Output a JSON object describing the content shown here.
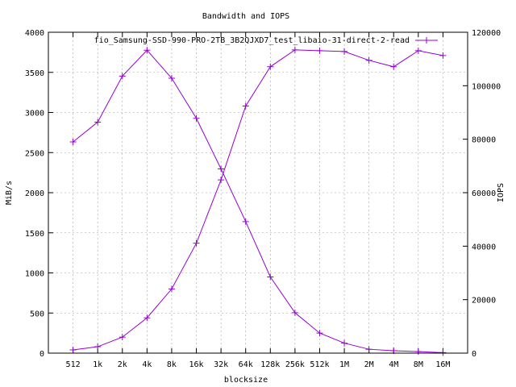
{
  "chart_data": {
    "type": "line",
    "title": "Bandwidth and IOPS",
    "xlabel": "blocksize",
    "ylabel": "MiB/s",
    "y2label": "IOPS",
    "categories": [
      "512",
      "1k",
      "2k",
      "4k",
      "8k",
      "16k",
      "32k",
      "64k",
      "128k",
      "256k",
      "512k",
      "1M",
      "2M",
      "4M",
      "8M",
      "16M"
    ],
    "ylim": [
      0,
      4000
    ],
    "y2lim": [
      0,
      120000
    ],
    "yticks": [
      "0",
      "500",
      "1000",
      "1500",
      "2000",
      "2500",
      "3000",
      "3500",
      "4000"
    ],
    "y2ticks": [
      "0",
      "20000",
      "40000",
      "60000",
      "80000",
      "100000",
      "120000"
    ],
    "grid": true,
    "legend_position": "top-right",
    "color": "#9400d3",
    "series": [
      {
        "name": "fio_Samsung-SSD-990-PRO-2TB_3B2QJXD7_test_libaio-31-direct-2-read",
        "axis": "left",
        "values": [
          40,
          80,
          200,
          440,
          800,
          1370,
          2160,
          3080,
          3570,
          3780,
          3770,
          3760,
          3650,
          3570,
          3770,
          3710
        ]
      },
      {
        "name": "",
        "axis": "right",
        "values": [
          79000,
          86400,
          103600,
          113300,
          102800,
          87800,
          68900,
          49200,
          28500,
          15100,
          7500,
          3750,
          1450,
          900,
          550,
          200
        ]
      }
    ]
  }
}
